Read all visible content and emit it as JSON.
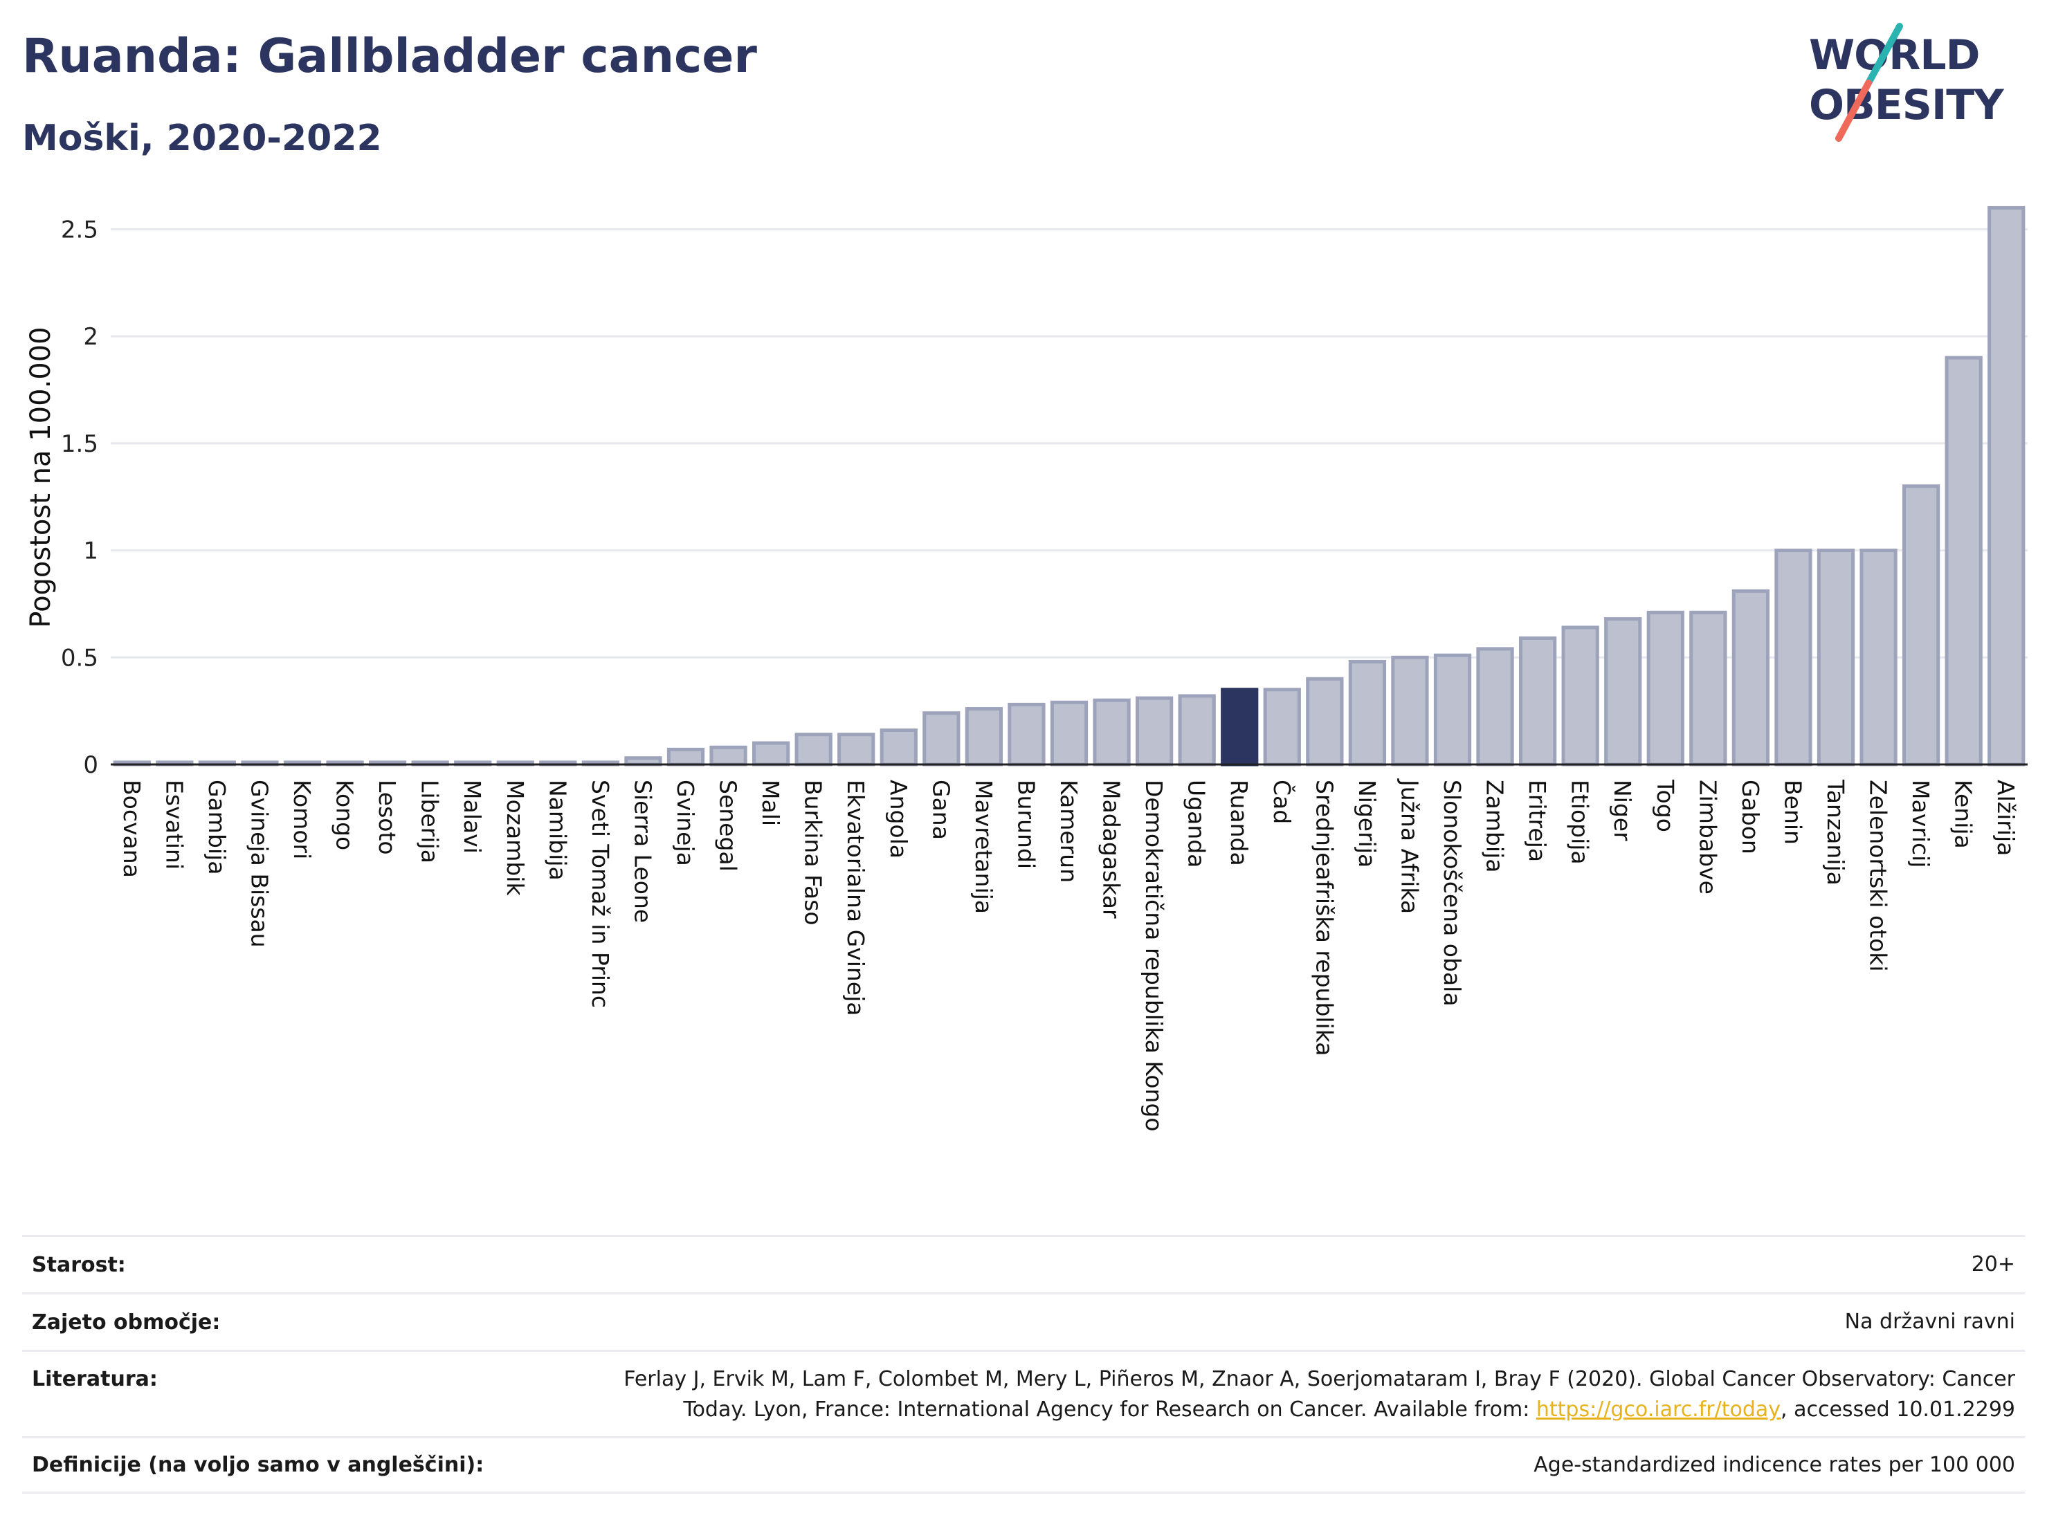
{
  "title": "Ruanda: Gallbladder cancer",
  "subtitle": "Moški, 2020-2022",
  "logo": {
    "line1": "WORLD",
    "line2": "OBESITY"
  },
  "colors": {
    "highlight": "#2b3560",
    "bar_fill": "#bcc0cf",
    "bar_stroke": "#9da3bb",
    "title": "#2b3560",
    "logo_teal": "#2bb3b1",
    "logo_coral": "#ef6a5a"
  },
  "chart_data": {
    "type": "bar",
    "ylabel": "Pogostost na 100.000",
    "ylim": [
      0,
      2.65
    ],
    "yticks": [
      0,
      0.5,
      1,
      1.5,
      2,
      2.5
    ],
    "ytick_labels": [
      "0",
      "0.5",
      "1",
      "1.5",
      "2",
      "2.5"
    ],
    "highlight": "Ruanda",
    "categories": [
      "Bocvana",
      "Esvatini",
      "Gambija",
      "Gvineja Bissau",
      "Komori",
      "Kongo",
      "Lesoto",
      "Liberija",
      "Malavi",
      "Mozambik",
      "Namibija",
      "Sveti Tomaž in Princ",
      "Sierra Leone",
      "Gvineja",
      "Senegal",
      "Mali",
      "Burkina Faso",
      "Ekvatorialna Gvineja",
      "Angola",
      "Gana",
      "Mavretanija",
      "Burundi",
      "Kamerun",
      "Madagaskar",
      "Demokratična republika Kongo",
      "Uganda",
      "Ruanda",
      "Čad",
      "Srednjeafriška republika",
      "Nigerija",
      "Južna Afrika",
      "Slonokoščena obala",
      "Zambija",
      "Eritreja",
      "Etiopija",
      "Niger",
      "Togo",
      "Zimbabve",
      "Gabon",
      "Benin",
      "Tanzanija",
      "Zelenortski otoki",
      "Mavricij",
      "Kenija",
      "Alžirija"
    ],
    "values": [
      0.01,
      0.01,
      0.01,
      0.01,
      0.01,
      0.01,
      0.01,
      0.01,
      0.01,
      0.01,
      0.01,
      0.01,
      0.03,
      0.07,
      0.08,
      0.1,
      0.14,
      0.14,
      0.16,
      0.24,
      0.26,
      0.28,
      0.29,
      0.3,
      0.31,
      0.32,
      0.35,
      0.35,
      0.4,
      0.48,
      0.5,
      0.51,
      0.54,
      0.59,
      0.64,
      0.68,
      0.71,
      0.71,
      0.81,
      1.0,
      1.0,
      1.0,
      1.3,
      1.9,
      2.6
    ]
  },
  "info": {
    "age_label": "Starost:",
    "age_value": "20+",
    "coverage_label": "Zajeto območje:",
    "coverage_value": "Na državni ravni",
    "literature_label": "Literatura:",
    "literature_text_1": "Ferlay J, Ervik M, Lam F, Colombet M, Mery L, Piñeros M, Znaor A, Soerjomataram I, Bray F (2020). Global Cancer Observatory: Cancer",
    "literature_text_2": "Today. Lyon, France: International Agency for Research on Cancer. Available from: ",
    "literature_link": "https://gco.iarc.fr/today",
    "literature_text_3": ", accessed 10.01.2299",
    "definitions_label": "Definicije (na voljo samo v angleščini):",
    "definitions_value": "Age-standardized indicence rates per 100 000"
  }
}
